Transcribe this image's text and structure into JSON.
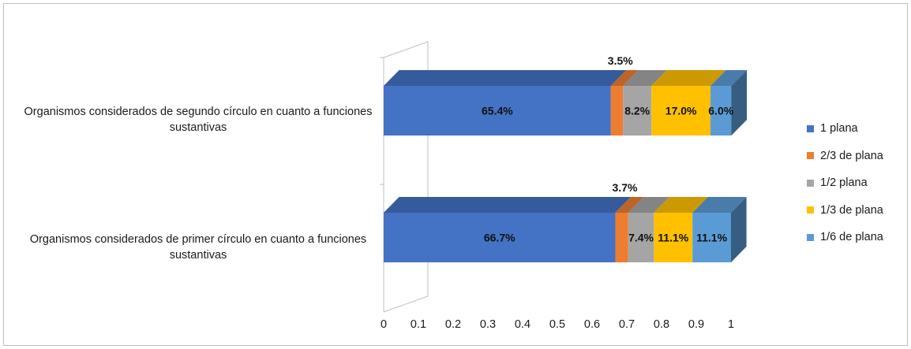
{
  "chart_data": {
    "type": "bar",
    "orientation": "horizontal",
    "stacked": true,
    "three_d": true,
    "categories": [
      "Organismos considerados de segundo círculo en cuanto a funciones sustantivas",
      "Organismos considerados de primer círculo en cuanto a funciones sustantivas"
    ],
    "series": [
      {
        "name": "1 plana",
        "values": [
          0.654,
          0.667
        ],
        "labels": [
          "65.4%",
          "66.7%"
        ],
        "color": "#4472c4"
      },
      {
        "name": "2/3 de plana",
        "values": [
          0.035,
          0.037
        ],
        "labels": [
          "3.5%",
          "3.7%"
        ],
        "color": "#ed7d31"
      },
      {
        "name": "1/2 plana",
        "values": [
          0.082,
          0.074
        ],
        "labels": [
          "8.2%",
          "7.4%"
        ],
        "color": "#a5a5a5"
      },
      {
        "name": "1/3 de plana",
        "values": [
          0.17,
          0.111
        ],
        "labels": [
          "17.0%",
          "11.1%"
        ],
        "color": "#ffc000"
      },
      {
        "name": "1/6 de plana",
        "values": [
          0.06,
          0.111
        ],
        "labels": [
          "6.0%",
          "11.1%"
        ],
        "color": "#5b9bd5"
      }
    ],
    "xlim": [
      0,
      1
    ],
    "x_ticks": [
      "0",
      "0.1",
      "0.2",
      "0.3",
      "0.4",
      "0.5",
      "0.6",
      "0.7",
      "0.8",
      "0.9",
      "1"
    ],
    "grid": false,
    "legend_position": "right"
  }
}
